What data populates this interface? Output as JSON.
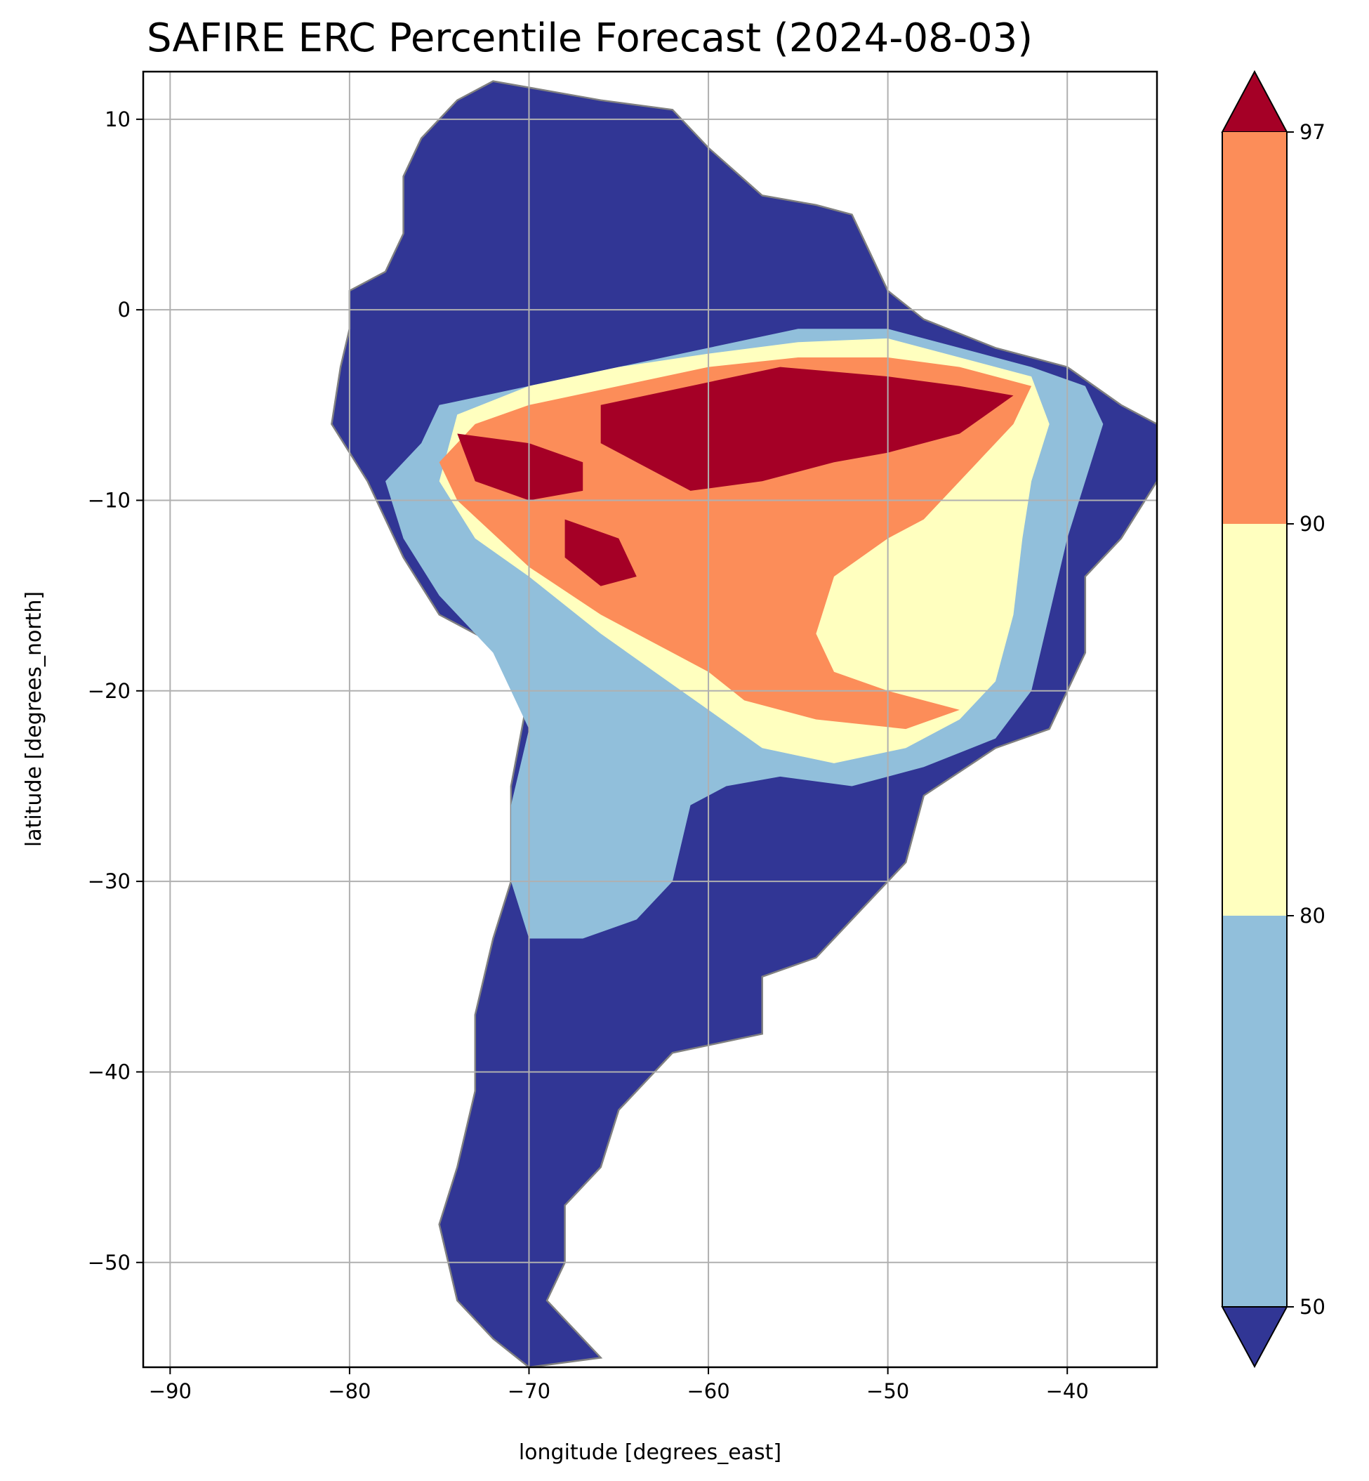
{
  "title": "SAFIRE ERC Percentile Forecast (2024-08-03)",
  "xlabel": "longitude [degrees_east]",
  "ylabel": "latitude [degrees_north]",
  "x_ticks": [
    "−90",
    "−80",
    "−70",
    "−60",
    "−50",
    "−40"
  ],
  "y_ticks": [
    "10",
    "0",
    "−10",
    "−20",
    "−30",
    "−40",
    "−50"
  ],
  "colorbar": {
    "tick_labels": [
      "50",
      "80",
      "90",
      "97"
    ],
    "bins": [
      {
        "range": "< 50",
        "color": "#313695"
      },
      {
        "range": "50–80",
        "color": "#91bfdb"
      },
      {
        "range": "80–90",
        "color": "#ffffbf"
      },
      {
        "range": "90–97",
        "color": "#fc8d59"
      },
      {
        "range": "> 97",
        "color": "#a50026"
      }
    ]
  },
  "chart_data": {
    "type": "heatmap",
    "title": "SAFIRE ERC Percentile Forecast (2024-08-03)",
    "xlabel": "longitude [degrees_east]",
    "ylabel": "latitude [degrees_north]",
    "xlim": [
      -91.5,
      -35
    ],
    "ylim": [
      -55.5,
      12.5
    ],
    "x_ticks": [
      -90,
      -80,
      -70,
      -60,
      -50,
      -40
    ],
    "y_ticks": [
      10,
      0,
      -10,
      -20,
      -30,
      -40,
      -50
    ],
    "grid": true,
    "colorbar_levels": [
      50,
      80,
      90,
      97
    ],
    "colorbar_extend": "both",
    "regions": [
      {
        "name": "south america land mask (below 50th percentile)",
        "class": "<50",
        "polygon": [
          [
            -72,
            12
          ],
          [
            -66,
            11
          ],
          [
            -62,
            10.5
          ],
          [
            -60,
            8.5
          ],
          [
            -57,
            6
          ],
          [
            -54,
            5.5
          ],
          [
            -52,
            5
          ],
          [
            -51,
            3
          ],
          [
            -50,
            1
          ],
          [
            -48,
            -0.5
          ],
          [
            -44,
            -2
          ],
          [
            -40,
            -3
          ],
          [
            -37,
            -5
          ],
          [
            -35,
            -6
          ],
          [
            -35,
            -9
          ],
          [
            -37,
            -12
          ],
          [
            -39,
            -14
          ],
          [
            -39,
            -18
          ],
          [
            -41,
            -22
          ],
          [
            -44,
            -23
          ],
          [
            -48,
            -25.5
          ],
          [
            -49,
            -29
          ],
          [
            -52,
            -32
          ],
          [
            -54,
            -34
          ],
          [
            -57,
            -35
          ],
          [
            -57,
            -38
          ],
          [
            -62,
            -39
          ],
          [
            -65,
            -42
          ],
          [
            -66,
            -45
          ],
          [
            -68,
            -47
          ],
          [
            -68,
            -50
          ],
          [
            -69,
            -52
          ],
          [
            -68,
            -53
          ],
          [
            -66,
            -55
          ],
          [
            -70,
            -55.5
          ],
          [
            -72,
            -54
          ],
          [
            -74,
            -52
          ],
          [
            -75,
            -48
          ],
          [
            -74,
            -45
          ],
          [
            -73,
            -41
          ],
          [
            -73,
            -37
          ],
          [
            -72,
            -33
          ],
          [
            -71,
            -30
          ],
          [
            -71,
            -25
          ],
          [
            -70,
            -20
          ],
          [
            -71,
            -18
          ],
          [
            -75,
            -16
          ],
          [
            -77,
            -13
          ],
          [
            -79,
            -9
          ],
          [
            -81,
            -6
          ],
          [
            -80.5,
            -3
          ],
          [
            -80,
            -1
          ],
          [
            -80,
            1
          ],
          [
            -78,
            2
          ],
          [
            -77,
            4
          ],
          [
            -77,
            7
          ],
          [
            -76,
            9
          ],
          [
            -74,
            11
          ]
        ]
      },
      {
        "name": "50-80 band",
        "class": "50-80",
        "polygon": [
          [
            -75,
            -5
          ],
          [
            -70,
            -4
          ],
          [
            -65,
            -3
          ],
          [
            -60,
            -2
          ],
          [
            -55,
            -1
          ],
          [
            -50,
            -1
          ],
          [
            -46,
            -2
          ],
          [
            -42,
            -3
          ],
          [
            -39,
            -4
          ],
          [
            -38,
            -6
          ],
          [
            -39,
            -9
          ],
          [
            -40,
            -12
          ],
          [
            -41,
            -16
          ],
          [
            -42,
            -20
          ],
          [
            -44,
            -22.5
          ],
          [
            -48,
            -24
          ],
          [
            -52,
            -25
          ],
          [
            -56,
            -24.5
          ],
          [
            -59,
            -25
          ],
          [
            -61,
            -26
          ],
          [
            -62,
            -30
          ],
          [
            -64,
            -32
          ],
          [
            -67,
            -33
          ],
          [
            -70,
            -33
          ],
          [
            -71,
            -30
          ],
          [
            -71,
            -26
          ],
          [
            -70,
            -22
          ],
          [
            -72,
            -18
          ],
          [
            -75,
            -15
          ],
          [
            -77,
            -12
          ],
          [
            -78,
            -9
          ],
          [
            -76,
            -7
          ]
        ]
      },
      {
        "name": "80-90 band",
        "class": "80-90",
        "polygon": [
          [
            -74,
            -5.5
          ],
          [
            -70,
            -4
          ],
          [
            -65,
            -3
          ],
          [
            -60,
            -2.3
          ],
          [
            -55,
            -1.7
          ],
          [
            -50,
            -1.5
          ],
          [
            -46,
            -2.5
          ],
          [
            -42,
            -3.5
          ],
          [
            -41,
            -6
          ],
          [
            -42,
            -9
          ],
          [
            -42.5,
            -12
          ],
          [
            -43,
            -16
          ],
          [
            -44,
            -19.5
          ],
          [
            -46,
            -21.5
          ],
          [
            -49,
            -23
          ],
          [
            -53,
            -23.8
          ],
          [
            -57,
            -23
          ],
          [
            -60,
            -21
          ],
          [
            -63,
            -19
          ],
          [
            -66,
            -17
          ],
          [
            -70,
            -14
          ],
          [
            -73,
            -12
          ],
          [
            -75,
            -9
          ]
        ]
      },
      {
        "name": "90-97 band",
        "class": "90-97",
        "polygon": [
          [
            -73,
            -6
          ],
          [
            -70,
            -5
          ],
          [
            -65,
            -4
          ],
          [
            -60,
            -3
          ],
          [
            -55,
            -2.5
          ],
          [
            -50,
            -2.5
          ],
          [
            -46,
            -3
          ],
          [
            -42,
            -4
          ],
          [
            -43,
            -6
          ],
          [
            -45,
            -8
          ],
          [
            -47,
            -10
          ],
          [
            -48,
            -11
          ],
          [
            -50,
            -12
          ],
          [
            -53,
            -14
          ],
          [
            -54,
            -17
          ],
          [
            -53,
            -19
          ],
          [
            -50,
            -20
          ],
          [
            -46,
            -21
          ],
          [
            -49,
            -22
          ],
          [
            -54,
            -21.5
          ],
          [
            -58,
            -20.5
          ],
          [
            -60,
            -19
          ],
          [
            -62,
            -18
          ],
          [
            -66,
            -16
          ],
          [
            -70,
            -13.5
          ],
          [
            -74,
            -10
          ],
          [
            -75,
            -8
          ]
        ]
      },
      {
        "name": "above 97 core",
        "class": ">97",
        "polygon": [
          [
            -66,
            -5
          ],
          [
            -61,
            -4
          ],
          [
            -56,
            -3
          ],
          [
            -50,
            -3.5
          ],
          [
            -46,
            -4
          ],
          [
            -43,
            -4.5
          ],
          [
            -46,
            -6.5
          ],
          [
            -50,
            -7.5
          ],
          [
            -53,
            -8
          ],
          [
            -57,
            -9
          ],
          [
            -61,
            -9.5
          ],
          [
            -64,
            -8
          ],
          [
            -66,
            -7
          ]
        ]
      },
      {
        "name": "above 97 west patch",
        "class": ">97",
        "polygon": [
          [
            -74,
            -6.5
          ],
          [
            -70,
            -7
          ],
          [
            -67,
            -8
          ],
          [
            -67,
            -9.5
          ],
          [
            -70,
            -10
          ],
          [
            -73,
            -9
          ]
        ]
      },
      {
        "name": "above 97 bolivia patch",
        "class": ">97",
        "polygon": [
          [
            -68,
            -11
          ],
          [
            -65,
            -12
          ],
          [
            -64,
            -14
          ],
          [
            -66,
            -14.5
          ],
          [
            -68,
            -13
          ]
        ]
      }
    ]
  }
}
